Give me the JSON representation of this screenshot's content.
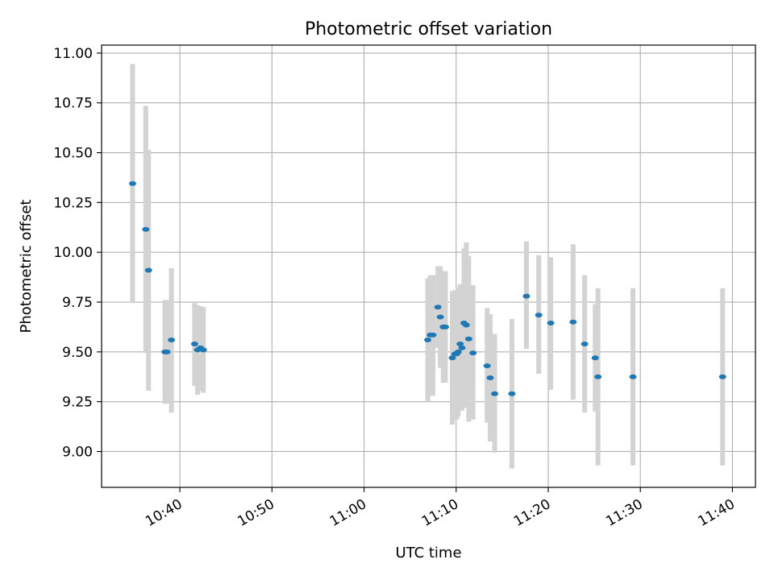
{
  "chart_data": {
    "type": "scatter",
    "title": "Photometric offset variation",
    "xlabel": "UTC time",
    "ylabel": "Photometric offset",
    "xlim": [
      "10:31:30",
      "11:42:30"
    ],
    "ylim": [
      8.82,
      11.04
    ],
    "xticks": [
      {
        "label": "10:40",
        "time": "10:40"
      },
      {
        "label": "10:50",
        "time": "10:50"
      },
      {
        "label": "11:00",
        "time": "11:00"
      },
      {
        "label": "11:10",
        "time": "11:10"
      },
      {
        "label": "11:20",
        "time": "11:20"
      },
      {
        "label": "11:30",
        "time": "11:30"
      },
      {
        "label": "11:40",
        "time": "11:40"
      }
    ],
    "yticks": [
      {
        "label": "9.00",
        "value": 9.0
      },
      {
        "label": "9.25",
        "value": 9.25
      },
      {
        "label": "9.50",
        "value": 9.5
      },
      {
        "label": "9.75",
        "value": 9.75
      },
      {
        "label": "10.00",
        "value": 10.0
      },
      {
        "label": "10.25",
        "value": 10.25
      },
      {
        "label": "10.50",
        "value": 10.5
      },
      {
        "label": "10.75",
        "value": 10.75
      },
      {
        "label": "11.00",
        "value": 11.0
      }
    ],
    "grid": true,
    "colors": {
      "point": "#1f77b4",
      "errorbar": "#d3d3d3",
      "grid": "#b0b0b0"
    },
    "series": [
      {
        "points": [
          {
            "x": "10:34:52",
            "y": 10.345,
            "ylow": 9.745,
            "yhigh": 10.945
          },
          {
            "x": "10:36:18",
            "y": 10.115,
            "ylow": 9.495,
            "yhigh": 10.735
          },
          {
            "x": "10:36:36",
            "y": 9.91,
            "ylow": 9.305,
            "yhigh": 10.515
          },
          {
            "x": "10:38:23",
            "y": 9.5,
            "ylow": 9.24,
            "yhigh": 9.76
          },
          {
            "x": "10:38:36",
            "y": 9.5,
            "ylow": 9.24,
            "yhigh": 9.76
          },
          {
            "x": "10:39:05",
            "y": 9.56,
            "ylow": 9.195,
            "yhigh": 9.92
          },
          {
            "x": "10:41:36",
            "y": 9.54,
            "ylow": 9.33,
            "yhigh": 9.745
          },
          {
            "x": "10:41:55",
            "y": 9.51,
            "ylow": 9.285,
            "yhigh": 9.735
          },
          {
            "x": "10:42:14",
            "y": 9.52,
            "ylow": 9.305,
            "yhigh": 9.73
          },
          {
            "x": "10:42:33",
            "y": 9.51,
            "ylow": 9.295,
            "yhigh": 9.725
          },
          {
            "x": "11:06:55",
            "y": 9.56,
            "ylow": 9.25,
            "yhigh": 9.87
          },
          {
            "x": "11:07:12",
            "y": 9.585,
            "ylow": 9.28,
            "yhigh": 9.885
          },
          {
            "x": "11:07:29",
            "y": 9.585,
            "ylow": 9.28,
            "yhigh": 9.885
          },
          {
            "x": "11:08:01",
            "y": 9.725,
            "ylow": 9.52,
            "yhigh": 9.93
          },
          {
            "x": "11:08:17",
            "y": 9.675,
            "ylow": 9.42,
            "yhigh": 9.93
          },
          {
            "x": "11:08:36",
            "y": 9.625,
            "ylow": 9.345,
            "yhigh": 9.905
          },
          {
            "x": "11:08:50",
            "y": 9.625,
            "ylow": 9.345,
            "yhigh": 9.905
          },
          {
            "x": "11:09:35",
            "y": 9.47,
            "ylow": 9.135,
            "yhigh": 9.805
          },
          {
            "x": "11:09:52",
            "y": 9.49,
            "ylow": 9.16,
            "yhigh": 9.81
          },
          {
            "x": "11:10:03",
            "y": 9.49,
            "ylow": 9.16,
            "yhigh": 9.81
          },
          {
            "x": "11:10:13",
            "y": 9.5,
            "ylow": 9.175,
            "yhigh": 9.82
          },
          {
            "x": "11:10:26",
            "y": 9.54,
            "ylow": 9.24,
            "yhigh": 9.84
          },
          {
            "x": "11:10:38",
            "y": 9.52,
            "ylow": 9.205,
            "yhigh": 9.835
          },
          {
            "x": "11:10:51",
            "y": 9.645,
            "ylow": 9.27,
            "yhigh": 10.02
          },
          {
            "x": "11:11:06",
            "y": 9.635,
            "ylow": 9.22,
            "yhigh": 10.05
          },
          {
            "x": "11:11:22",
            "y": 9.565,
            "ylow": 9.15,
            "yhigh": 9.98
          },
          {
            "x": "11:11:50",
            "y": 9.495,
            "ylow": 9.16,
            "yhigh": 9.835
          },
          {
            "x": "11:13:22",
            "y": 9.43,
            "ylow": 9.145,
            "yhigh": 9.72
          },
          {
            "x": "11:13:42",
            "y": 9.37,
            "ylow": 9.05,
            "yhigh": 9.69
          },
          {
            "x": "11:14:11",
            "y": 9.29,
            "ylow": 8.995,
            "yhigh": 9.59
          },
          {
            "x": "11:16:03",
            "y": 9.29,
            "ylow": 8.915,
            "yhigh": 9.665
          },
          {
            "x": "11:17:38",
            "y": 9.78,
            "ylow": 9.515,
            "yhigh": 10.055
          },
          {
            "x": "11:18:58",
            "y": 9.685,
            "ylow": 9.39,
            "yhigh": 9.985
          },
          {
            "x": "11:20:16",
            "y": 9.645,
            "ylow": 9.31,
            "yhigh": 9.975
          },
          {
            "x": "11:22:42",
            "y": 9.65,
            "ylow": 9.26,
            "yhigh": 10.04
          },
          {
            "x": "11:23:57",
            "y": 9.54,
            "ylow": 9.195,
            "yhigh": 9.885
          },
          {
            "x": "11:25:06",
            "y": 9.47,
            "ylow": 9.2,
            "yhigh": 9.74
          },
          {
            "x": "11:25:24",
            "y": 9.375,
            "ylow": 8.93,
            "yhigh": 9.82
          },
          {
            "x": "11:29:12",
            "y": 9.375,
            "ylow": 8.93,
            "yhigh": 9.82
          },
          {
            "x": "11:38:56",
            "y": 9.375,
            "ylow": 8.93,
            "yhigh": 9.82
          }
        ]
      }
    ]
  }
}
